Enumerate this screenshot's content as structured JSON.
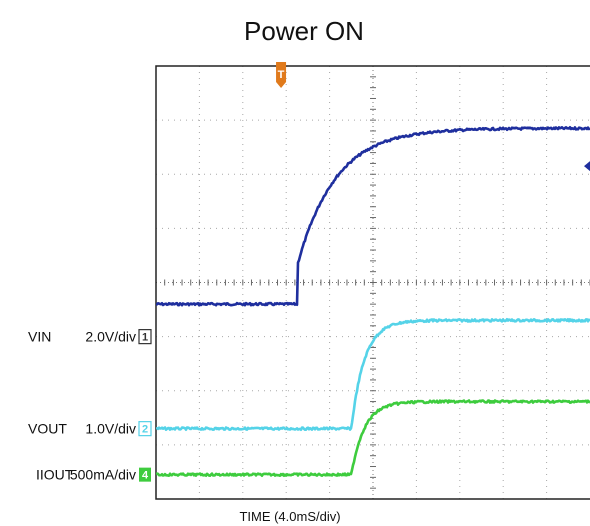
{
  "chart_data": {
    "type": "line",
    "title": "Power ON",
    "xlabel": "TIME (4.0mS/div)",
    "x_unit": "ms",
    "x_per_div": 4.0,
    "divisions": {
      "horizontal": 10,
      "vertical": 8
    },
    "trigger_marker": "T",
    "grid": true,
    "channels": [
      {
        "id": "ch1",
        "name": "VIN",
        "scale": "2.0V/div",
        "badge": "1",
        "badge_style": "outline",
        "color": "#1f2f9e",
        "ground_div": 3.0,
        "levels_div": {
          "start": 3.6,
          "end": 6.85
        },
        "edge_start_ms": 13.0,
        "jump_div": 0.7,
        "tau_ms": 3.5,
        "stub_div": 6.15
      },
      {
        "id": "ch2",
        "name": "VOUT",
        "scale": "1.0V/div",
        "badge": "2",
        "badge_style": "outline",
        "color": "#55d3e8",
        "ground_div": 1.3,
        "levels_div": {
          "start": 1.3,
          "end": 3.3
        },
        "edge_start_ms": 18.0,
        "jump_div": 0.0,
        "tau_ms": 1.2
      },
      {
        "id": "ch4",
        "name": "IIOUT",
        "scale": "500mA/div",
        "badge": "4",
        "badge_style": "filled",
        "color": "#3ecc3e",
        "ground_div": 0.45,
        "levels_div": {
          "start": 0.45,
          "end": 1.8
        },
        "edge_start_ms": 18.0,
        "jump_div": 0.0,
        "tau_ms": 1.2
      }
    ]
  }
}
